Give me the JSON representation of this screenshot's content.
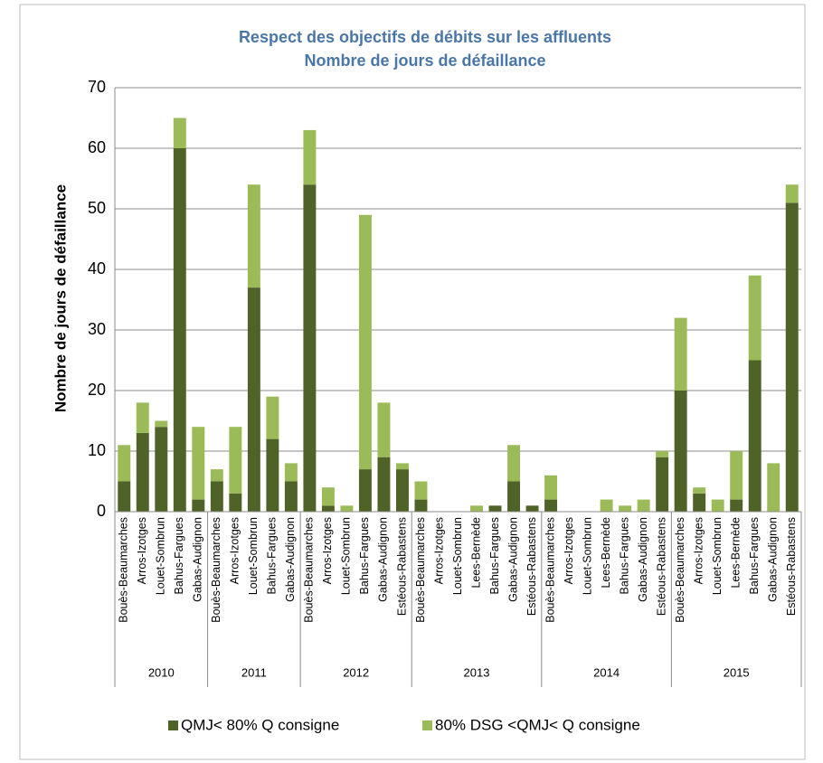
{
  "chart_data": {
    "type": "bar",
    "stacked": true,
    "title": "Respect des objectifs de débits sur les affluents",
    "subtitle": "Nombre de jours de défaillance",
    "ylabel": "Nombre de jours de défaillance",
    "groups": [
      {
        "name": "2010",
        "categories": [
          "Bouès-Beaumarches",
          "Arros-Izotges",
          "Louet-Sombrun",
          "Bahus-Fargues",
          "Gabas-Audignon"
        ]
      },
      {
        "name": "2011",
        "categories": [
          "Bouès-Beaumarches",
          "Arros-Izotges",
          "Louet-Sombrun",
          "Bahus-Fargues",
          "Gabas-Audignon"
        ]
      },
      {
        "name": "2012",
        "categories": [
          "Bouès-Beaumarches",
          "Arros-Izotges",
          "Louet-Sombrun",
          "Bahus-Fargues",
          "Gabas-Audignon",
          "Estéous-Rabastens"
        ]
      },
      {
        "name": "2013",
        "categories": [
          "Bouès-Beaumarches",
          "Arros-Izotges",
          "Louet-Sombrun",
          "Lees-Bernède",
          "Bahus-Fargues",
          "Gabas-Audignon",
          "Estéous-Rabastens"
        ]
      },
      {
        "name": "2014",
        "categories": [
          "Bouès-Beaumarches",
          "Arros-Izotges",
          "Louet-Sombrun",
          "Lees-Bernède",
          "Bahus-Fargues",
          "Gabas-Audignon",
          "Estéous-Rabastens"
        ]
      },
      {
        "name": "2015",
        "categories": [
          "Bouès-Beaumarches",
          "Arros-Izotges",
          "Louet-Sombrun",
          "Lees-Bernède",
          "Bahus-Fargues",
          "Gabas-Audignon",
          "Estéous-Rabastens"
        ]
      }
    ],
    "series": [
      {
        "name": "QMJ< 80% Q consigne",
        "color": "#4f6228",
        "values": [
          [
            5,
            13,
            14,
            60,
            2
          ],
          [
            5,
            3,
            37,
            12,
            5
          ],
          [
            54,
            1,
            0,
            7,
            9,
            7
          ],
          [
            2,
            0,
            0,
            0,
            1,
            5,
            1
          ],
          [
            2,
            0,
            0,
            0,
            0,
            0,
            9
          ],
          [
            20,
            3,
            0,
            2,
            25,
            0,
            51
          ]
        ]
      },
      {
        "name": "80% DSG <QMJ< Q consigne",
        "color": "#9bbb59",
        "values": [
          [
            6,
            5,
            1,
            5,
            12
          ],
          [
            2,
            11,
            17,
            7,
            3
          ],
          [
            9,
            3,
            1,
            42,
            9,
            1
          ],
          [
            3,
            0,
            0,
            1,
            0,
            6,
            0
          ],
          [
            4,
            0,
            0,
            2,
            1,
            2,
            1
          ],
          [
            12,
            1,
            2,
            8,
            14,
            8,
            3
          ]
        ]
      }
    ],
    "ylim": [
      0,
      70
    ],
    "yticks": [
      0,
      10,
      20,
      30,
      40,
      50,
      60,
      70
    ],
    "grid": true
  }
}
